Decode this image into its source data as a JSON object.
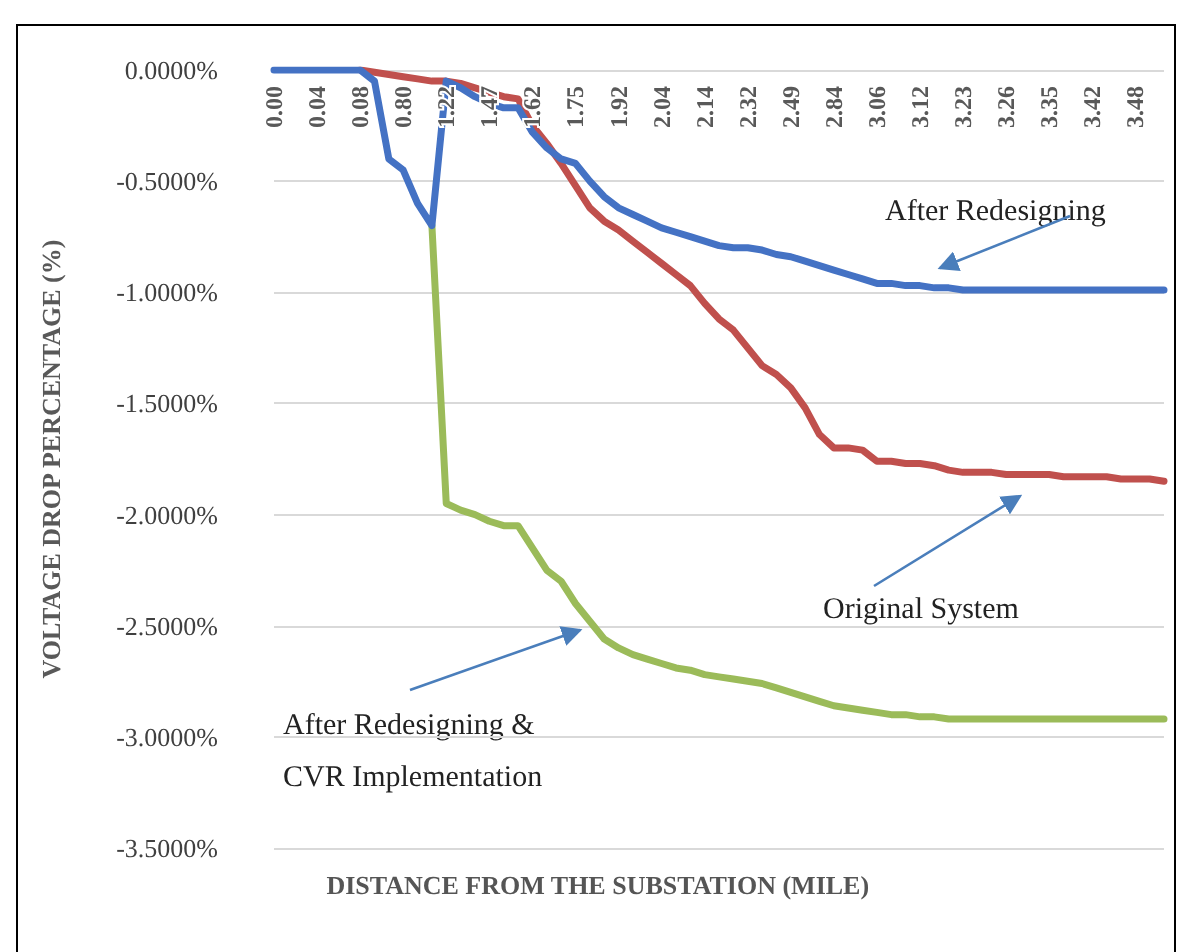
{
  "chart_data": {
    "type": "line",
    "xlabel": "DISTANCE FROM THE SUBSTATION (MILE)",
    "ylabel": "VOLTAGE DROP PERCENTAGE (%)",
    "categories": [
      "0.00",
      null,
      null,
      "0.04",
      null,
      null,
      "0.08",
      null,
      null,
      "0.80",
      null,
      null,
      "1.22",
      null,
      null,
      "1.47",
      null,
      null,
      "1.62",
      null,
      null,
      "1.75",
      null,
      null,
      "1.92",
      null,
      null,
      "2.04",
      null,
      null,
      "2.14",
      null,
      null,
      "2.32",
      null,
      null,
      "2.49",
      null,
      null,
      "2.84",
      null,
      null,
      "3.06",
      null,
      null,
      "3.12",
      null,
      null,
      "3.23",
      null,
      null,
      "3.26",
      null,
      null,
      "3.35",
      null,
      null,
      "3.42",
      null,
      null,
      "3.48",
      null,
      null
    ],
    "series": [
      {
        "color": "#c0504d",
        "values": [
          null,
          null,
          null,
          null,
          null,
          null,
          0,
          -0.01,
          -0.02,
          -0.03,
          -0.04,
          -0.05,
          -0.05,
          -0.06,
          -0.08,
          -0.1,
          -0.12,
          -0.13,
          -0.25,
          -0.33,
          -0.42,
          -0.52,
          -0.62,
          -0.68,
          -0.72,
          -0.77,
          -0.82,
          -0.87,
          -0.92,
          -0.97,
          -1.05,
          -1.12,
          -1.17,
          -1.25,
          -1.33,
          -1.37,
          -1.43,
          -1.52,
          -1.64,
          -1.7,
          -1.7,
          -1.71,
          -1.76,
          -1.76,
          -1.77,
          -1.77,
          -1.78,
          -1.8,
          -1.81,
          -1.81,
          -1.81,
          -1.82,
          -1.82,
          -1.82,
          -1.82,
          -1.83,
          -1.83,
          -1.83,
          -1.83,
          -1.84,
          -1.84,
          -1.84,
          -1.85
        ]
      },
      {
        "color": "#9bbb59",
        "values": [
          null,
          null,
          null,
          null,
          null,
          null,
          null,
          null,
          null,
          null,
          null,
          -0.7,
          -1.95,
          -1.98,
          -2.0,
          -2.03,
          -2.05,
          -2.05,
          -2.15,
          -2.25,
          -2.3,
          -2.4,
          -2.48,
          -2.56,
          -2.6,
          -2.63,
          -2.65,
          -2.67,
          -2.69,
          -2.7,
          -2.72,
          -2.73,
          -2.74,
          -2.75,
          -2.76,
          -2.78,
          -2.8,
          -2.82,
          -2.84,
          -2.86,
          -2.87,
          -2.88,
          -2.89,
          -2.9,
          -2.9,
          -2.91,
          -2.91,
          -2.92,
          -2.92,
          -2.92,
          -2.92,
          -2.92,
          -2.92,
          -2.92,
          -2.92,
          -2.92,
          -2.92,
          -2.92,
          -2.92,
          -2.92,
          -2.92,
          -2.92,
          -2.92
        ]
      },
      {
        "color": "#4472c4",
        "values": [
          0,
          0,
          0,
          0,
          0,
          0,
          0,
          -0.05,
          -0.4,
          -0.45,
          -0.6,
          -0.7,
          -0.05,
          -0.08,
          -0.12,
          -0.15,
          -0.17,
          -0.17,
          -0.28,
          -0.35,
          -0.4,
          -0.42,
          -0.5,
          -0.57,
          -0.62,
          -0.65,
          -0.68,
          -0.71,
          -0.73,
          -0.75,
          -0.77,
          -0.79,
          -0.8,
          -0.8,
          -0.81,
          -0.83,
          -0.84,
          -0.86,
          -0.88,
          -0.9,
          -0.92,
          -0.94,
          -0.96,
          -0.96,
          -0.97,
          -0.97,
          -0.98,
          -0.98,
          -0.99,
          -0.99,
          -0.99,
          -0.99,
          -0.99,
          -0.99,
          -0.99,
          -0.99,
          -0.99,
          -0.99,
          -0.99,
          -0.99,
          -0.99,
          -0.99,
          -0.99
        ]
      }
    ],
    "ylim": [
      -3.5,
      0
    ],
    "yticks": [
      {
        "value": 0,
        "label": "0.0000%"
      },
      {
        "value": -0.5,
        "label": "-0.5000%"
      },
      {
        "value": -1,
        "label": "-1.0000%"
      },
      {
        "value": -1.5,
        "label": "-1.5000%"
      },
      {
        "value": -2,
        "label": "-2.0000%"
      },
      {
        "value": -2.5,
        "label": "-2.5000%"
      },
      {
        "value": -3,
        "label": "-3.0000%"
      },
      {
        "value": -3.5,
        "label": "-3.5000%"
      }
    ],
    "annotations": [
      "After Redesigning",
      "Original System",
      "After Redesigning &\nCVR Implementation"
    ],
    "grid": "y",
    "marker": "none",
    "line_style": "solid"
  }
}
